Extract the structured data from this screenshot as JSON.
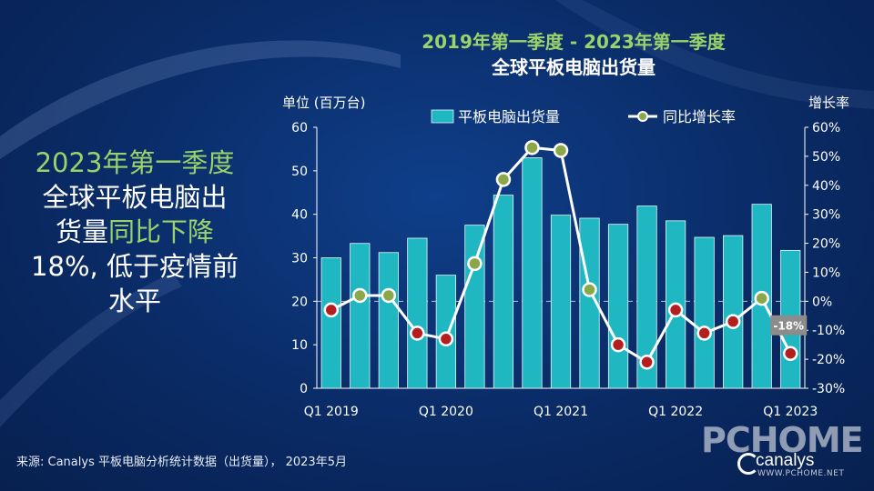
{
  "title": {
    "line1": "2019年第一季度 - 2023年第一季度",
    "line2": "全球平板电脑出货量"
  },
  "headline": {
    "p1": "2023年第一季度",
    "p2": "全球平板电脑出",
    "p3a": "货量",
    "p3b": "同比下降",
    "p4": "18%, 低于疫情前",
    "p5": "水平"
  },
  "source": "来源: Canalys 平板电脑分析统计数据（出货量）， 2023年5月",
  "logo": {
    "canalys": "canalys",
    "url": "WWW.PCHOME.NET"
  },
  "colors": {
    "bar": "#1fb8c2",
    "line": "#ffffff",
    "marker_positive": "#8aa84a",
    "marker_negative": "#b41e1e",
    "accent_green": "#9bd36b"
  },
  "chart_data": {
    "type": "bar",
    "ylabel": "单位 (百万台)",
    "y2label": "增长率",
    "ylim": [
      0,
      60
    ],
    "y2lim": [
      -30,
      60
    ],
    "yticks": [
      "0",
      "10",
      "20",
      "30",
      "40",
      "50",
      "60"
    ],
    "y2ticks": [
      "-30%",
      "-20%",
      "-10%",
      "0%",
      "10%",
      "20%",
      "30%",
      "40%",
      "50%",
      "60%"
    ],
    "xtick_labels": [
      "Q1 2019",
      "Q1 2020",
      "Q1 2021",
      "Q1 2022",
      "Q1 2023"
    ],
    "legend_placement": "top",
    "grid": false,
    "categories": [
      "Q1 2019",
      "Q2 2019",
      "Q3 2019",
      "Q4 2019",
      "Q1 2020",
      "Q2 2020",
      "Q3 2020",
      "Q4 2020",
      "Q1 2021",
      "Q2 2021",
      "Q3 2021",
      "Q4 2021",
      "Q1 2022",
      "Q2 2022",
      "Q3 2022",
      "Q4 2022",
      "Q1 2023"
    ],
    "series": [
      {
        "name": "平板电脑出货量",
        "kind": "bar",
        "axis": "left",
        "values": [
          30.0,
          33.3,
          31.2,
          34.5,
          26.0,
          37.5,
          44.4,
          53.0,
          39.8,
          39.1,
          37.7,
          41.9,
          38.5,
          34.7,
          35.1,
          42.3,
          31.7
        ]
      },
      {
        "name": "同比增长率",
        "kind": "line",
        "axis": "right",
        "values": [
          -3,
          2,
          2,
          -11,
          -13,
          13,
          42,
          53,
          52,
          4,
          -15,
          -21,
          -3,
          -11,
          -7,
          1,
          -18
        ]
      }
    ],
    "annotations": [
      {
        "index": 16,
        "text": "-18%"
      }
    ]
  }
}
